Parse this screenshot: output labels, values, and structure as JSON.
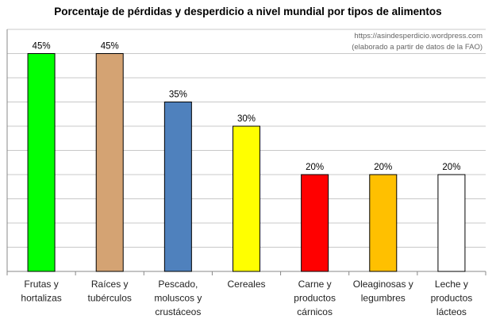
{
  "chart_data": {
    "type": "bar",
    "title": "Porcentaje de pérdidas y desperdicio a nivel mundial por tipos de alimentos",
    "annotations": [
      "https://asindesperdicio.wordpress.com",
      "(elaborado a partir de datos de la FAO)"
    ],
    "categories": [
      [
        "Frutas y",
        "hortalizas"
      ],
      [
        "Raíces y",
        "tubérculos"
      ],
      [
        "Pescado,",
        "moluscos y",
        "crustáceos"
      ],
      [
        "Cereales"
      ],
      [
        "Carne y",
        "productos",
        "cárnicos"
      ],
      [
        "Oleaginosas y",
        "legumbres"
      ],
      [
        "Leche y",
        "productos",
        "lácteos"
      ]
    ],
    "values": [
      45,
      45,
      35,
      30,
      20,
      20,
      20
    ],
    "data_labels": [
      "45%",
      "45%",
      "35%",
      "30%",
      "20%",
      "20%",
      "20%"
    ],
    "colors": [
      "#00ff00",
      "#d4a373",
      "#4f81bd",
      "#ffff00",
      "#ff0000",
      "#ffc000",
      "#ffffff"
    ],
    "ylim": [
      0,
      50
    ],
    "grid_step": 5,
    "grid": true,
    "legend": "none",
    "xlabel": "",
    "ylabel": ""
  }
}
